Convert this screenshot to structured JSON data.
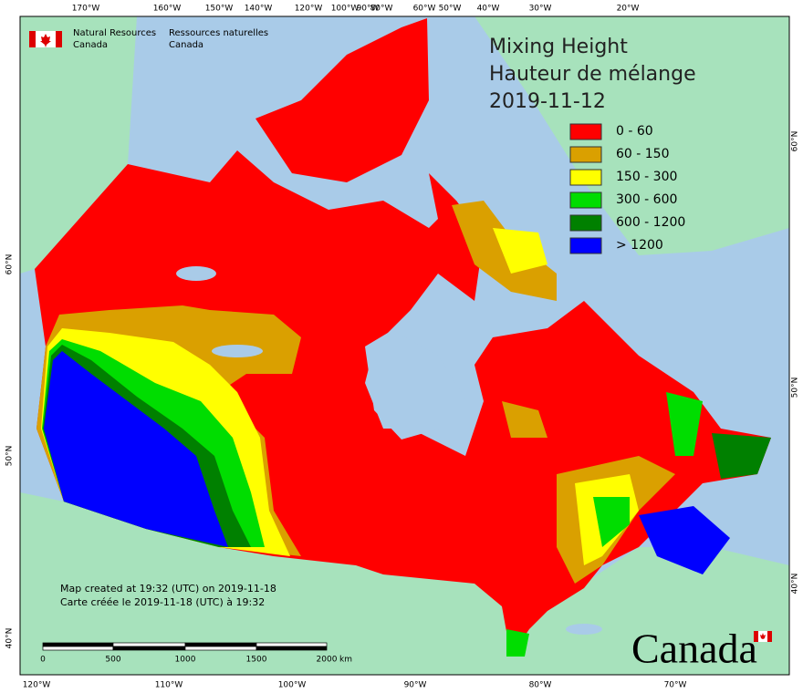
{
  "header": {
    "en": [
      "Natural Resources",
      "Canada"
    ],
    "fr": [
      "Ressources naturelles",
      "Canada"
    ]
  },
  "title": [
    "Mixing Height",
    "Hauteur de mélange",
    "2019-11-12"
  ],
  "legend": [
    {
      "label": "0 - 60",
      "color": "#ff0000"
    },
    {
      "label": "60 - 150",
      "color": "#daa000"
    },
    {
      "label": "150 - 300",
      "color": "#ffff00"
    },
    {
      "label": "300 - 600",
      "color": "#00dd00"
    },
    {
      "label": "600 - 1200",
      "color": "#008000"
    },
    {
      "label": "> 1200",
      "color": "#0000ff"
    }
  ],
  "credit": [
    "Map created at 19:32 (UTC) on 2019-11-18",
    "Carte créée le 2019-11-18 (UTC) à 19:32"
  ],
  "scale": {
    "labels": [
      "0",
      "500",
      "1000",
      "1500",
      "2000"
    ],
    "unit": "km"
  },
  "graticule": {
    "top": [
      "170°W",
      "160°W",
      "150°W",
      "140°W",
      "120°W",
      "100°W",
      "90°W",
      "80°W",
      "60°W",
      "50°W",
      "40°W",
      "30°W",
      "20°W"
    ],
    "bottom": [
      "120°W",
      "110°W",
      "100°W",
      "90°W",
      "80°W",
      "70°W"
    ],
    "left": [
      "60°N",
      "50°N",
      "40°N"
    ],
    "right": [
      "60°N",
      "50°N",
      "40°N"
    ]
  },
  "wordmark": "Canada"
}
